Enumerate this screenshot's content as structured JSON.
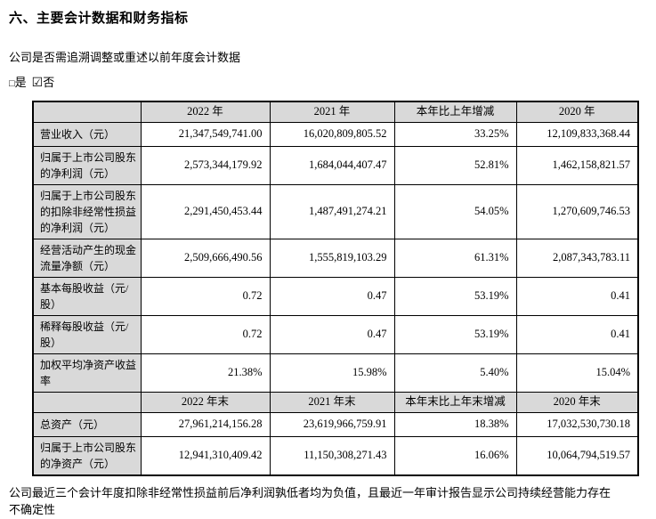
{
  "doc": {
    "title": "六、主要会计数据和财务指标",
    "question": "公司是否需追溯调整或重述以前年度会计数据",
    "yes_box": "□",
    "yes_label": "是",
    "no_box": "☑",
    "no_label": "否",
    "footnote": "公司最近三个会计年度扣除非经常性损益前后净利润孰低者均为负值，且最近一年审计报告显示公司持续经营能力存在不确定性"
  },
  "colors": {
    "cell_shade": "#d9d9d9",
    "border": "#000000",
    "text": "#000000"
  },
  "table": {
    "header_annual": [
      "",
      "2022 年",
      "2021 年",
      "本年比上年增减",
      "2020 年"
    ],
    "rows_annual": [
      {
        "cells": [
          "营业收入（元）",
          "21,347,549,741.00",
          "16,020,809,805.52",
          "33.25%",
          "12,109,833,368.44"
        ]
      },
      {
        "cells": [
          "归属于上市公司股东的净利润（元）",
          "2,573,344,179.92",
          "1,684,044,407.47",
          "52.81%",
          "1,462,158,821.57"
        ]
      },
      {
        "cells": [
          "归属于上市公司股东的扣除非经常性损益的净利润（元）",
          "2,291,450,453.44",
          "1,487,491,274.21",
          "54.05%",
          "1,270,609,746.53"
        ]
      },
      {
        "cells": [
          "经营活动产生的现金流量净额（元）",
          "2,509,666,490.56",
          "1,555,819,103.29",
          "61.31%",
          "2,087,343,783.11"
        ]
      },
      {
        "cells": [
          "基本每股收益（元/股）",
          "0.72",
          "0.47",
          "53.19%",
          "0.41"
        ]
      },
      {
        "cells": [
          "稀释每股收益（元/股）",
          "0.72",
          "0.47",
          "53.19%",
          "0.41"
        ]
      },
      {
        "cells": [
          "加权平均净资产收益率",
          "21.38%",
          "15.98%",
          "5.40%",
          "15.04%"
        ]
      }
    ],
    "header_yearend": [
      "",
      "2022 年末",
      "2021 年末",
      "本年末比上年末增减",
      "2020 年末"
    ],
    "rows_yearend": [
      {
        "cells": [
          "总资产（元）",
          "27,961,214,156.28",
          "23,619,966,759.91",
          "18.38%",
          "17,032,530,730.18"
        ]
      },
      {
        "cells": [
          "归属于上市公司股东的净资产（元）",
          "12,941,310,409.42",
          "11,150,308,271.43",
          "16.06%",
          "10,064,794,519.57"
        ]
      }
    ]
  }
}
